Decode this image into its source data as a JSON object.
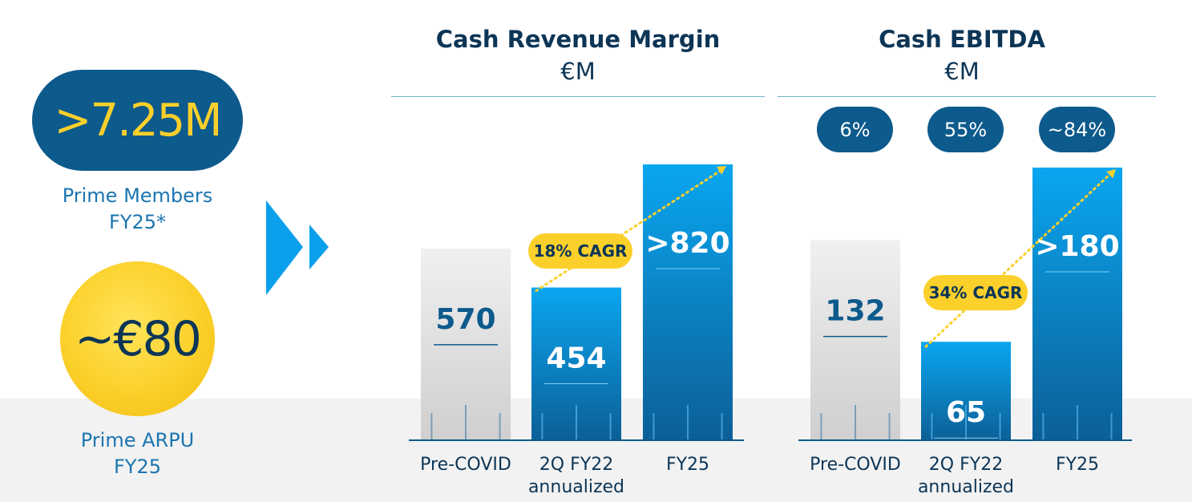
{
  "kpis": {
    "members": {
      "value": ">7.25M",
      "label_line1": "Prime Members",
      "label_line2": "FY25*"
    },
    "arpu": {
      "value": "~€80",
      "label_line1": "Prime ARPU",
      "label_line2": "FY25"
    }
  },
  "colors": {
    "navy": "#0d5a8c",
    "yellow": "#fbd02a",
    "blue": "#0aa0ec",
    "grey": "#d6d6d6",
    "text": "#0c3556"
  },
  "chart_data": [
    {
      "type": "bar",
      "title": "Cash Revenue Margin",
      "subtitle": "€M",
      "categories": [
        "Pre-COVID",
        "2Q FY22\nannualized",
        "FY25"
      ],
      "values": [
        570,
        454,
        820
      ],
      "value_labels": [
        "570",
        "454",
        ">820"
      ],
      "bar_styles": [
        "grey",
        "blue",
        "blue"
      ],
      "cagr": {
        "label": "18% CAGR",
        "from_index": 1,
        "to_index": 2
      },
      "ylim": [
        0,
        820
      ]
    },
    {
      "type": "bar",
      "title": "Cash EBITDA",
      "subtitle": "€M",
      "categories": [
        "Pre-COVID",
        "2Q FY22\nannualized",
        "FY25"
      ],
      "values": [
        132,
        65,
        180
      ],
      "value_labels": [
        "132",
        "65",
        ">180"
      ],
      "bar_styles": [
        "grey",
        "blue",
        "blue"
      ],
      "margins": [
        "6%",
        "55%",
        "~84%"
      ],
      "cagr": {
        "label": "34% CAGR",
        "from_index": 1,
        "to_index": 2
      },
      "ylim": [
        0,
        180
      ]
    }
  ]
}
